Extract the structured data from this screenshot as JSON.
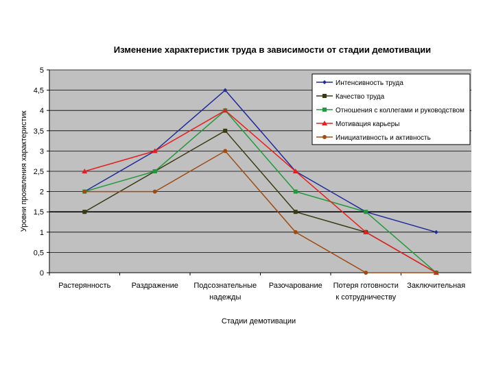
{
  "chart_data": {
    "type": "line",
    "title": "Изменение характеристик труда в зависимости  от стадии демотивации",
    "xlabel": "Стадии демотивации",
    "ylabel": "Уровни проявления характеристик",
    "ylim": [
      0,
      5
    ],
    "yticks": [
      "0",
      "0,5",
      "1",
      "1,5",
      "2",
      "2,5",
      "3",
      "3,5",
      "4",
      "4,5",
      "5"
    ],
    "grid": true,
    "legend_position": "top-right",
    "categories": [
      [
        "Растерянность"
      ],
      [
        "Раздражение"
      ],
      [
        "Подсознательные",
        "надежды"
      ],
      [
        "Разочарование"
      ],
      [
        "Потеря готовности",
        "к сотрудничеству"
      ],
      [
        "Заключительная"
      ]
    ],
    "series": [
      {
        "name": "Интенсивность труда",
        "color": "#1f2a9a",
        "marker": "diamond",
        "values": [
          2,
          3,
          4.5,
          2.5,
          1.5,
          1
        ]
      },
      {
        "name": "Качество труда",
        "color": "#3a3a10",
        "marker": "square",
        "values": [
          1.5,
          2.5,
          3.5,
          1.5,
          1,
          0
        ]
      },
      {
        "name": "Отношения с коллегами и руководством",
        "color": "#1e9a3a",
        "marker": "square",
        "values": [
          2,
          2.5,
          4,
          2,
          1.5,
          0
        ]
      },
      {
        "name": "Мотивация карьеры",
        "color": "#e81e1e",
        "marker": "triangle",
        "values": [
          2.5,
          3,
          4,
          2.5,
          1,
          0
        ]
      },
      {
        "name": "Инициативность и активность",
        "color": "#a04a10",
        "marker": "circle",
        "values": [
          2,
          2,
          3,
          1,
          0,
          0
        ]
      }
    ]
  }
}
